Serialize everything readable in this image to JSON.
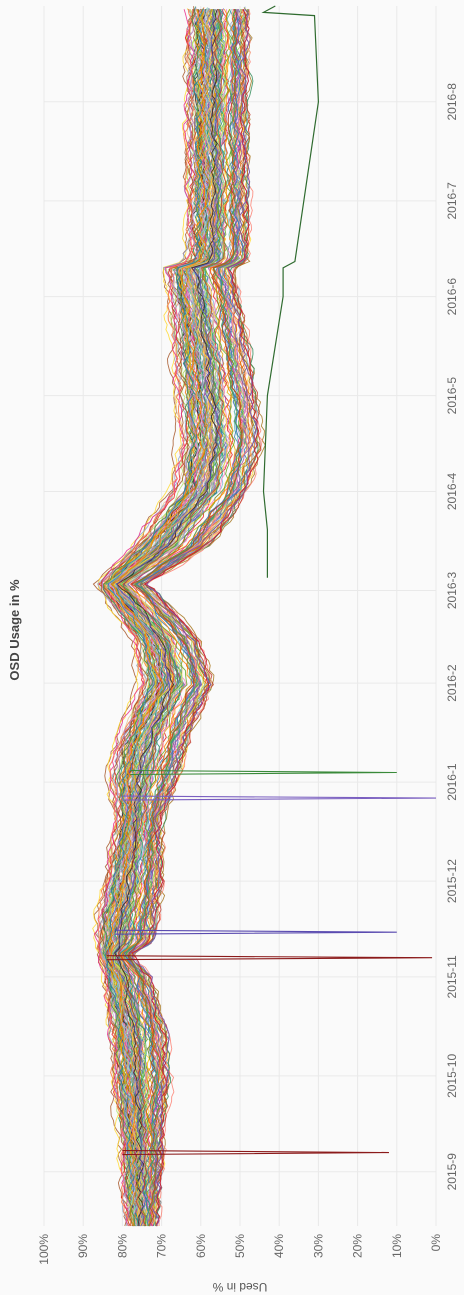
{
  "chart_data": {
    "type": "line",
    "orientation": "rotated-90-clockwise",
    "title": "OSD Usage in %",
    "ylabel": "Used in %",
    "xlabel": "",
    "ylim": [
      0,
      100
    ],
    "y_unit": "%",
    "y_ticks": [
      {
        "value": 100,
        "label": "100%"
      },
      {
        "value": 90,
        "label": "90%"
      },
      {
        "value": 80,
        "label": "80%"
      },
      {
        "value": 70,
        "label": "70%"
      },
      {
        "value": 60,
        "label": "60%"
      },
      {
        "value": 50,
        "label": "50%"
      },
      {
        "value": 40,
        "label": "40%"
      },
      {
        "value": 30,
        "label": "30%"
      },
      {
        "value": 20,
        "label": "20%"
      },
      {
        "value": 10,
        "label": "10%"
      },
      {
        "value": 0,
        "label": "0%"
      }
    ],
    "xlim": [
      "2015-08-15",
      "2016-08-31"
    ],
    "x_ticks": [
      {
        "value": "2015-09-01",
        "label": "2015-9"
      },
      {
        "value": "2015-10-01",
        "label": "2015-10"
      },
      {
        "value": "2015-11-01",
        "label": "2015-11"
      },
      {
        "value": "2015-12-01",
        "label": "2015-12"
      },
      {
        "value": "2016-01-01",
        "label": "2016-1"
      },
      {
        "value": "2016-02-01",
        "label": "2016-2"
      },
      {
        "value": "2016-03-01",
        "label": "2016-3"
      },
      {
        "value": "2016-04-01",
        "label": "2016-4"
      },
      {
        "value": "2016-05-01",
        "label": "2016-5"
      },
      {
        "value": "2016-06-01",
        "label": "2016-6"
      },
      {
        "value": "2016-07-01",
        "label": "2016-7"
      },
      {
        "value": "2016-08-01",
        "label": "2016-8"
      }
    ],
    "grid": true,
    "legend": "none",
    "series_count_visible": "many (one line per OSD, ~150+)",
    "envelope": {
      "x": [
        "2015-08-15",
        "2015-08-25",
        "2015-09-02",
        "2015-09-15",
        "2015-10-01",
        "2015-10-15",
        "2015-11-01",
        "2015-11-08",
        "2015-11-12",
        "2015-11-20",
        "2015-12-01",
        "2015-12-20",
        "2016-01-01",
        "2016-01-15",
        "2016-02-01",
        "2016-02-15",
        "2016-03-01",
        "2016-03-03",
        "2016-03-15",
        "2016-04-01",
        "2016-04-15",
        "2016-05-01",
        "2016-06-01",
        "2016-06-10",
        "2016-06-12",
        "2016-07-01",
        "2016-08-01",
        "2016-08-31"
      ],
      "upper": [
        79,
        80,
        80,
        81,
        83,
        84,
        85,
        86,
        87,
        87,
        85,
        82,
        84,
        82,
        76,
        78,
        86,
        87,
        78,
        68,
        66,
        67,
        69,
        70,
        64,
        64,
        64,
        64
      ],
      "median": [
        75,
        76,
        75,
        76,
        77,
        78,
        80,
        82,
        80,
        78,
        76,
        75,
        76,
        71,
        66,
        70,
        80,
        82,
        70,
        60,
        58,
        59,
        62,
        64,
        58,
        58,
        58,
        58
      ],
      "lower": [
        71,
        71,
        70,
        70,
        68,
        69,
        73,
        78,
        72,
        71,
        70,
        70,
        66,
        63,
        57,
        61,
        72,
        74,
        58,
        48,
        45,
        46,
        50,
        52,
        48,
        48,
        48,
        48
      ]
    },
    "outlier_series": [
      {
        "x": [
          "2016-03-05",
          "2016-03-20",
          "2016-04-01",
          "2016-05-01",
          "2016-06-01",
          "2016-06-10",
          "2016-06-12",
          "2016-08-01",
          "2016-08-28",
          "2016-08-29",
          "2016-08-31"
        ],
        "y": [
          43,
          43,
          44,
          43,
          39,
          39,
          36,
          30,
          31,
          44,
          41
        ],
        "color": "#2f6b2f"
      }
    ],
    "spikes": [
      {
        "x": "2015-09-07",
        "y_from": 80,
        "y_to": 12,
        "color": "#8b1a1a"
      },
      {
        "x": "2015-11-07",
        "y_from": 84,
        "y_to": 1,
        "color": "#8b1a1a"
      },
      {
        "x": "2015-11-15",
        "y_from": 82,
        "y_to": 10,
        "color": "#5a4bb0"
      },
      {
        "x": "2015-12-27",
        "y_from": 80,
        "y_to": 0,
        "color": "#7a5fc0"
      },
      {
        "x": "2016-01-04",
        "y_from": 78,
        "y_to": 10,
        "color": "#3a8a3a"
      }
    ]
  }
}
